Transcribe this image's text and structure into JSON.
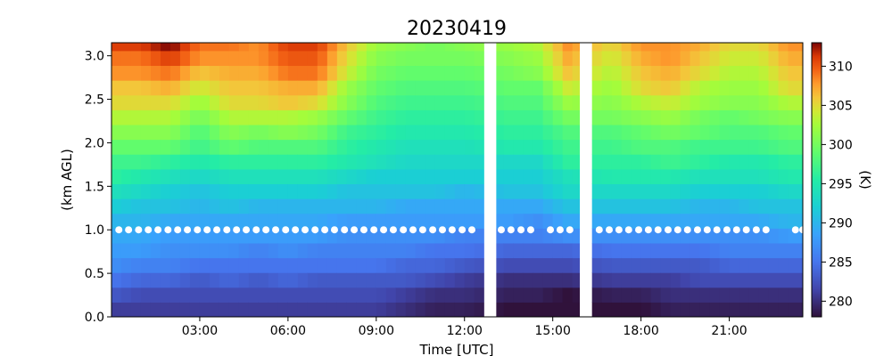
{
  "chart_data": {
    "type": "heatmap",
    "title": "20230419",
    "xlabel": "Time [UTC]",
    "ylabel": "(km AGL)",
    "colorbar_label": "(K)",
    "colormap": "turbo",
    "xlim": [
      0.0,
      23.5
    ],
    "ylim": [
      0.0,
      3.15
    ],
    "clim": [
      278,
      313
    ],
    "x_ticks": [
      3,
      6,
      9,
      12,
      15,
      18,
      21
    ],
    "x_tick_labels": [
      "03:00",
      "06:00",
      "09:00",
      "12:00",
      "15:00",
      "18:00",
      "21:00"
    ],
    "y_ticks": [
      0.0,
      0.5,
      1.0,
      1.5,
      2.0,
      2.5,
      3.0
    ],
    "y_tick_labels": [
      "0.0",
      "0.5",
      "1.0",
      "1.5",
      "2.0",
      "2.5",
      "3.0"
    ],
    "colorbar_ticks": [
      280,
      285,
      290,
      295,
      300,
      305,
      310
    ],
    "colorbar_tick_labels": [
      "280",
      "285",
      "290",
      "295",
      "300",
      "305",
      "310"
    ],
    "missing_time_ranges": [
      [
        12.67,
        13.08
      ],
      [
        15.92,
        16.33
      ]
    ],
    "marker_height_km": 1.0,
    "marker_color": "#ffffff",
    "marker_times": [
      0.25,
      0.58,
      0.92,
      1.25,
      1.58,
      1.92,
      2.25,
      2.58,
      2.92,
      3.25,
      3.58,
      3.92,
      4.25,
      4.58,
      4.92,
      5.25,
      5.58,
      5.92,
      6.25,
      6.58,
      6.92,
      7.25,
      7.58,
      7.92,
      8.25,
      8.58,
      8.92,
      9.25,
      9.58,
      9.92,
      10.25,
      10.58,
      10.92,
      11.25,
      11.58,
      11.92,
      12.25,
      13.25,
      13.58,
      13.92,
      14.25,
      14.92,
      15.25,
      15.58,
      16.58,
      16.92,
      17.25,
      17.58,
      17.92,
      18.25,
      18.58,
      18.92,
      19.25,
      19.58,
      19.92,
      20.25,
      20.58,
      20.92,
      21.25,
      21.58,
      21.92,
      22.25,
      23.25,
      23.5
    ],
    "profile_heights_km": [
      0.0,
      0.17,
      0.34,
      0.51,
      0.68,
      0.85,
      1.02,
      1.19,
      1.36,
      1.53,
      1.7,
      1.87,
      2.04,
      2.21,
      2.38,
      2.55,
      2.72,
      2.89,
      3.06
    ],
    "temperature_columns": [
      {
        "time": 0.0,
        "values": [
          281,
          283,
          285,
          287,
          288,
          289,
          290,
          292,
          294,
          296,
          297,
          299,
          301,
          303,
          305,
          306,
          308,
          309,
          311
        ]
      },
      {
        "time": 1.0,
        "values": [
          281,
          282,
          284,
          286,
          288,
          289,
          290,
          291,
          293,
          295,
          297,
          299,
          301,
          303,
          305,
          306,
          308,
          309,
          311
        ]
      },
      {
        "time": 2.0,
        "values": [
          281,
          282,
          284,
          286,
          287,
          288,
          289,
          291,
          292,
          294,
          296,
          299,
          301,
          303,
          305,
          307,
          309,
          311,
          313
        ]
      },
      {
        "time": 3.0,
        "values": [
          281,
          282,
          283,
          285,
          287,
          288,
          289,
          290,
          291,
          293,
          295,
          297,
          298,
          300,
          302,
          304,
          306,
          308,
          309
        ]
      },
      {
        "time": 4.0,
        "values": [
          281,
          282,
          284,
          285,
          287,
          288,
          289,
          291,
          292,
          294,
          296,
          299,
          301,
          303,
          305,
          306,
          307,
          308,
          309
        ]
      },
      {
        "time": 5.0,
        "values": [
          281,
          282,
          283,
          285,
          286,
          288,
          289,
          290,
          292,
          294,
          296,
          298,
          300,
          303,
          305,
          306,
          307,
          308,
          308
        ]
      },
      {
        "time": 6.0,
        "values": [
          281,
          282,
          284,
          285,
          287,
          288,
          289,
          290,
          292,
          294,
          296,
          298,
          301,
          303,
          306,
          307,
          309,
          310,
          311
        ]
      },
      {
        "time": 7.0,
        "values": [
          281,
          282,
          283,
          285,
          286,
          288,
          289,
          290,
          292,
          294,
          296,
          298,
          300,
          302,
          305,
          307,
          309,
          310,
          311
        ]
      },
      {
        "time": 8.0,
        "values": [
          281,
          282,
          283,
          285,
          286,
          287,
          288,
          290,
          291,
          293,
          295,
          296,
          297,
          299,
          301,
          302,
          304,
          305,
          306
        ]
      },
      {
        "time": 9.0,
        "values": [
          281,
          282,
          283,
          285,
          286,
          287,
          288,
          290,
          291,
          292,
          294,
          295,
          296,
          297,
          298,
          299,
          300,
          301,
          302
        ]
      },
      {
        "time": 10.0,
        "values": [
          280,
          281,
          283,
          284,
          286,
          287,
          288,
          289,
          291,
          292,
          293,
          294,
          295,
          296,
          297,
          298,
          299,
          300,
          301
        ]
      },
      {
        "time": 11.0,
        "values": [
          279,
          280,
          282,
          284,
          285,
          287,
          288,
          289,
          291,
          292,
          293,
          294,
          295,
          296,
          297,
          298,
          299,
          300,
          300
        ]
      },
      {
        "time": 12.0,
        "values": [
          279,
          280,
          281,
          283,
          285,
          286,
          288,
          289,
          290,
          292,
          293,
          294,
          295,
          296,
          297,
          298,
          299,
          300,
          301
        ]
      },
      {
        "time": 13.5,
        "values": [
          278,
          279,
          280,
          282,
          284,
          286,
          288,
          289,
          291,
          292,
          293,
          295,
          296,
          297,
          298,
          299,
          300,
          301,
          302
        ]
      },
      {
        "time": 14.5,
        "values": [
          278,
          279,
          280,
          282,
          284,
          286,
          287,
          289,
          291,
          292,
          293,
          295,
          296,
          297,
          298,
          299,
          301,
          302,
          303
        ]
      },
      {
        "time": 15.5,
        "values": [
          277,
          278,
          280,
          282,
          284,
          287,
          289,
          291,
          293,
          294,
          296,
          297,
          298,
          300,
          302,
          304,
          306,
          307,
          308
        ]
      },
      {
        "time": 17.0,
        "values": [
          278,
          279,
          281,
          283,
          285,
          287,
          289,
          291,
          293,
          295,
          296,
          297,
          298,
          300,
          301,
          302,
          303,
          304,
          305
        ]
      },
      {
        "time": 18.0,
        "values": [
          278,
          279,
          281,
          283,
          285,
          287,
          289,
          291,
          293,
          295,
          296,
          298,
          299,
          301,
          303,
          305,
          306,
          307,
          308
        ]
      },
      {
        "time": 19.0,
        "values": [
          279,
          280,
          281,
          283,
          285,
          287,
          289,
          291,
          293,
          295,
          297,
          298,
          300,
          302,
          304,
          306,
          307,
          308,
          308
        ]
      },
      {
        "time": 20.0,
        "values": [
          279,
          280,
          282,
          283,
          285,
          287,
          289,
          290,
          292,
          294,
          296,
          297,
          299,
          300,
          302,
          303,
          305,
          306,
          307
        ]
      },
      {
        "time": 21.0,
        "values": [
          279,
          280,
          282,
          284,
          286,
          287,
          289,
          290,
          292,
          294,
          295,
          297,
          298,
          299,
          301,
          302,
          303,
          304,
          305
        ]
      },
      {
        "time": 22.0,
        "values": [
          279,
          280,
          282,
          284,
          286,
          287,
          289,
          291,
          292,
          294,
          295,
          297,
          298,
          300,
          301,
          302,
          303,
          304,
          305
        ]
      },
      {
        "time": 23.0,
        "values": [
          279,
          280,
          282,
          284,
          286,
          288,
          290,
          291,
          293,
          295,
          296,
          298,
          299,
          301,
          303,
          305,
          306,
          307,
          308
        ]
      }
    ]
  }
}
